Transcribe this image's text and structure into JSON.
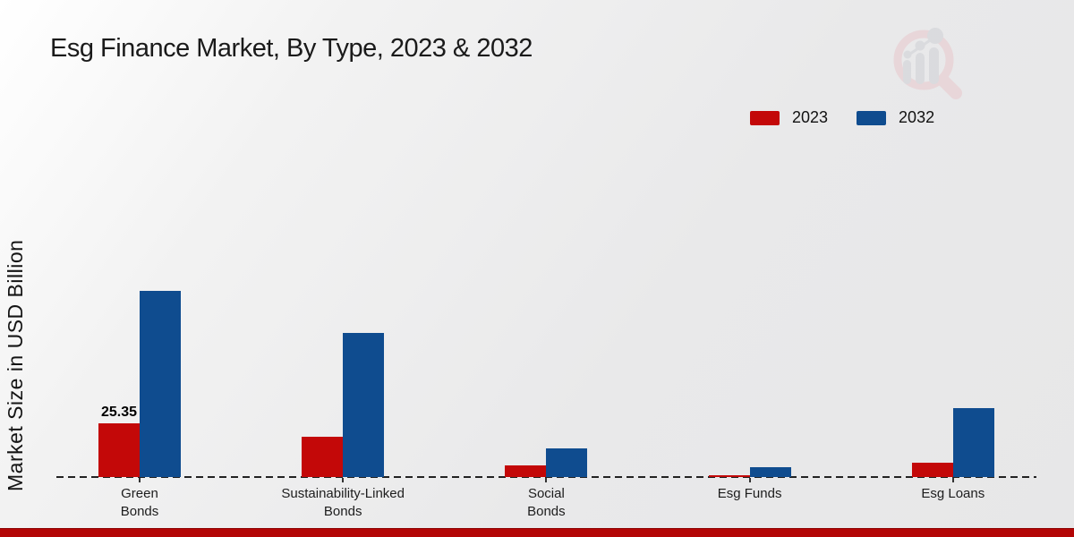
{
  "title": "Esg Finance Market, By Type, 2023 & 2032",
  "ylabel": "Market Size in USD Billion",
  "legend": [
    {
      "label": "2023",
      "color": "#c30808"
    },
    {
      "label": "2032",
      "color": "#0f4c8f"
    }
  ],
  "footer_color": "#b30505",
  "watermark_icon": "magnifier-bar-chart-logo",
  "chart_data": {
    "type": "bar",
    "categories": [
      "Green Bonds",
      "Sustainability-Linked Bonds",
      "Social Bonds",
      "Esg Funds",
      "Esg Loans"
    ],
    "category_lines": [
      [
        "Green",
        "Bonds"
      ],
      [
        "Sustainability-Linked",
        "Bonds"
      ],
      [
        "Social",
        "Bonds"
      ],
      [
        "Esg Funds"
      ],
      [
        "Esg Loans"
      ]
    ],
    "series": [
      {
        "name": "2023",
        "color": "#c30808",
        "values": [
          25.35,
          19.0,
          5.5,
          0.85,
          6.75
        ]
      },
      {
        "name": "2032",
        "color": "#0f4c8f",
        "values": [
          87.9,
          68.0,
          13.5,
          4.65,
          32.5
        ]
      }
    ],
    "value_label": {
      "category": 0,
      "series": 0,
      "text": "25.35"
    },
    "xlabel": "",
    "ylabel": "Market Size in USD Billion",
    "ylim": [
      0,
      95
    ],
    "baseline_style": "dashed",
    "grid": false,
    "legend_position": "top-right"
  }
}
